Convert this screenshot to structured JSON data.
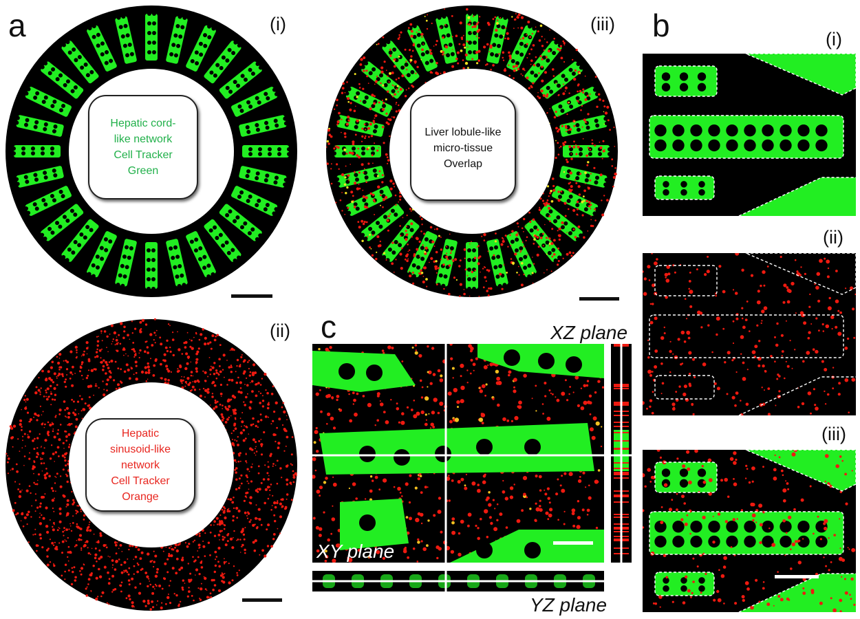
{
  "panel_a": {
    "letter": "a",
    "sub_i": "(i)",
    "sub_ii": "(ii)",
    "sub_iii": "(iii)",
    "box_i": [
      "Hepatic cord-",
      "like network",
      "Cell Tracker",
      "Green"
    ],
    "box_ii": [
      "Hepatic",
      "sinusoid-like",
      "network",
      "Cell Tracker",
      "Orange"
    ],
    "box_iii": [
      "Liver lobule-like",
      "micro-tissue",
      "Overlap"
    ],
    "box_i_color": "#21b04a",
    "box_ii_color": "#e8261f",
    "box_iii_color": "#111111"
  },
  "panel_b": {
    "letter": "b",
    "sub_i": "(i)",
    "sub_ii": "(ii)",
    "sub_iii": "(iii)"
  },
  "panel_c": {
    "letter": "c",
    "xz_label": "XZ plane",
    "xy_label": "XY plane",
    "yz_label": "YZ plane"
  },
  "colors": {
    "green_channel": "#22ee22",
    "red_channel": "#ee1a10",
    "background": "#000000"
  }
}
